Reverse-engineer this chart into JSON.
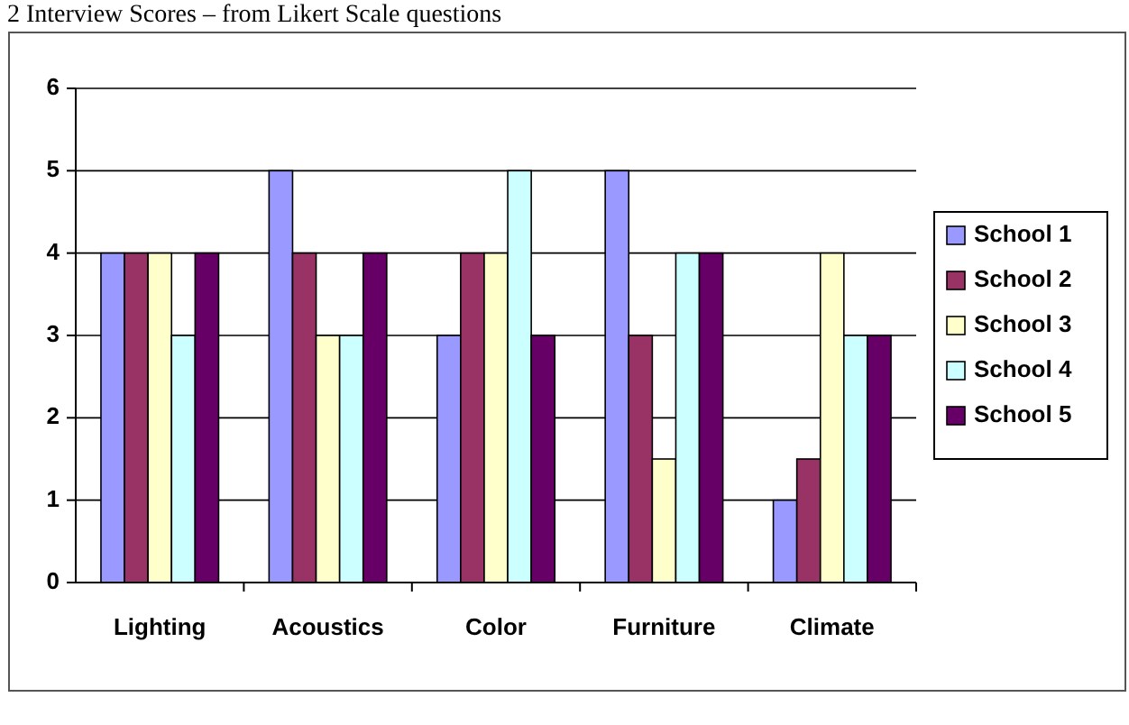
{
  "chart_data": {
    "type": "bar",
    "title": "2 Interview Scores – from Likert Scale questions",
    "categories": [
      "Lighting",
      "Acoustics",
      "Color",
      "Furniture",
      "Climate"
    ],
    "series": [
      {
        "name": "School 1",
        "color": "#9999ff",
        "values": [
          4,
          5,
          3,
          5,
          1
        ]
      },
      {
        "name": "School 2",
        "color": "#993366",
        "values": [
          4,
          4,
          4,
          3,
          1.5
        ]
      },
      {
        "name": "School 3",
        "color": "#ffffcc",
        "values": [
          4,
          3,
          4,
          1.5,
          4
        ]
      },
      {
        "name": "School 4",
        "color": "#ccffff",
        "values": [
          3,
          3,
          5,
          4,
          3
        ]
      },
      {
        "name": "School 5",
        "color": "#660066",
        "values": [
          4,
          4,
          3,
          4,
          3
        ]
      }
    ],
    "ylim": [
      0,
      6
    ],
    "yticks": [
      0,
      1,
      2,
      3,
      4,
      5,
      6
    ],
    "grid": "y",
    "legend": "right"
  }
}
